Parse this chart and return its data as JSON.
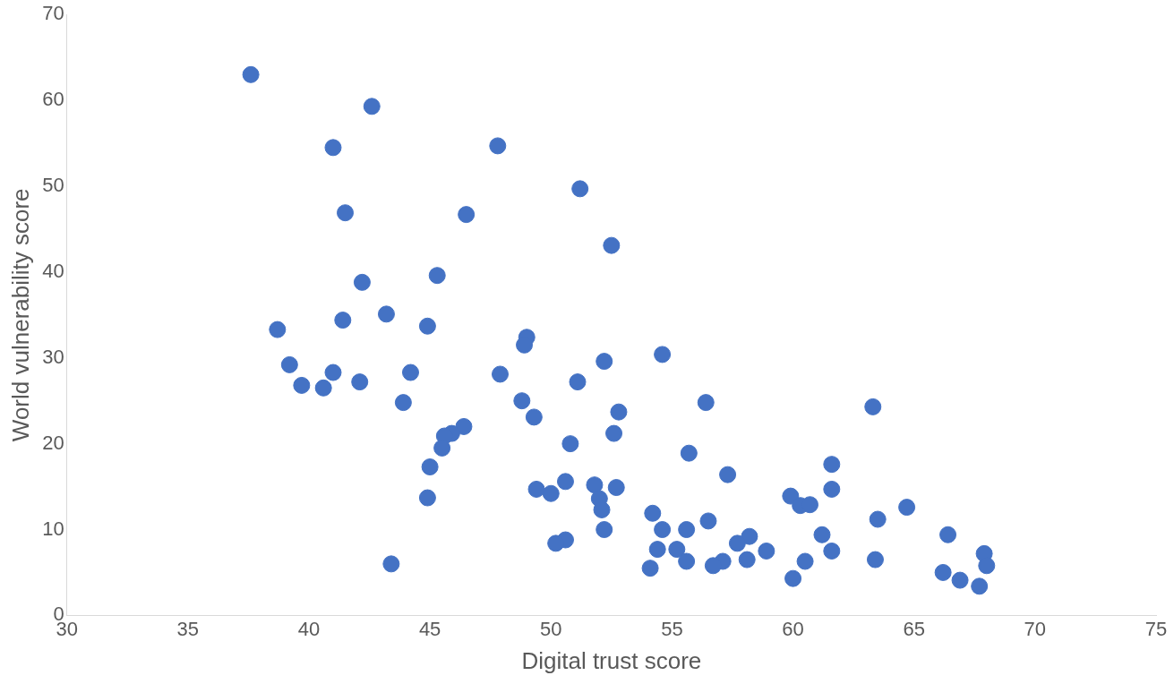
{
  "chart_data": {
    "type": "scatter",
    "xlabel": "Digital trust score",
    "ylabel": "World vulnerability score",
    "xlim": [
      30,
      75
    ],
    "xticks": [
      30,
      35,
      40,
      45,
      50,
      55,
      60,
      65,
      70,
      75
    ],
    "ylim": [
      0,
      70
    ],
    "yticks": [
      0,
      10,
      20,
      30,
      40,
      50,
      60,
      70
    ],
    "grid": false,
    "legend": false,
    "marker": "circle",
    "series": [
      {
        "color": "#4472c4",
        "x": [
          37.6,
          42.6,
          41.0,
          47.8,
          51.2,
          41.5,
          46.5,
          52.5,
          45.3,
          42.2,
          43.2,
          41.4,
          38.7,
          44.9,
          49.0,
          48.9,
          54.6,
          52.2,
          39.2,
          41.0,
          44.2,
          47.9,
          39.7,
          40.6,
          42.1,
          51.1,
          43.9,
          48.8,
          56.4,
          63.3,
          52.8,
          49.3,
          46.4,
          45.9,
          45.6,
          52.6,
          50.8,
          45.5,
          55.7,
          57.3,
          61.6,
          45.0,
          49.4,
          50.0,
          50.6,
          51.8,
          52.7,
          52.0,
          52.1,
          44.9,
          61.6,
          59.9,
          60.3,
          60.7,
          63.5,
          64.7,
          54.2,
          56.5,
          52.2,
          54.6,
          55.6,
          61.2,
          58.2,
          66.4,
          50.6,
          50.2,
          57.7,
          54.4,
          55.2,
          58.9,
          61.6,
          67.9,
          43.4,
          55.6,
          57.1,
          58.1,
          60.5,
          63.4,
          56.7,
          68.0,
          54.1,
          66.2,
          66.9,
          67.7,
          60.0
        ],
        "values": [
          63.0,
          59.3,
          54.5,
          54.7,
          49.7,
          46.9,
          46.7,
          43.1,
          39.6,
          38.8,
          35.1,
          34.4,
          33.3,
          33.7,
          32.4,
          31.5,
          30.4,
          29.6,
          29.2,
          28.3,
          28.3,
          28.1,
          26.8,
          26.5,
          27.2,
          27.2,
          24.8,
          25.0,
          24.8,
          24.3,
          23.7,
          23.1,
          22.0,
          21.2,
          20.9,
          21.2,
          20.0,
          19.5,
          18.9,
          16.4,
          17.6,
          17.3,
          14.7,
          14.2,
          15.6,
          15.2,
          14.9,
          13.6,
          12.3,
          13.7,
          14.7,
          13.9,
          12.8,
          12.9,
          11.2,
          12.6,
          11.9,
          11.0,
          10.0,
          10.0,
          10.0,
          9.4,
          9.2,
          9.4,
          8.8,
          8.4,
          8.4,
          7.7,
          7.7,
          7.5,
          7.5,
          7.2,
          6.0,
          6.3,
          6.3,
          6.5,
          6.3,
          6.5,
          5.8,
          5.8,
          5.5,
          5.0,
          4.1,
          3.4,
          4.3
        ]
      }
    ]
  }
}
